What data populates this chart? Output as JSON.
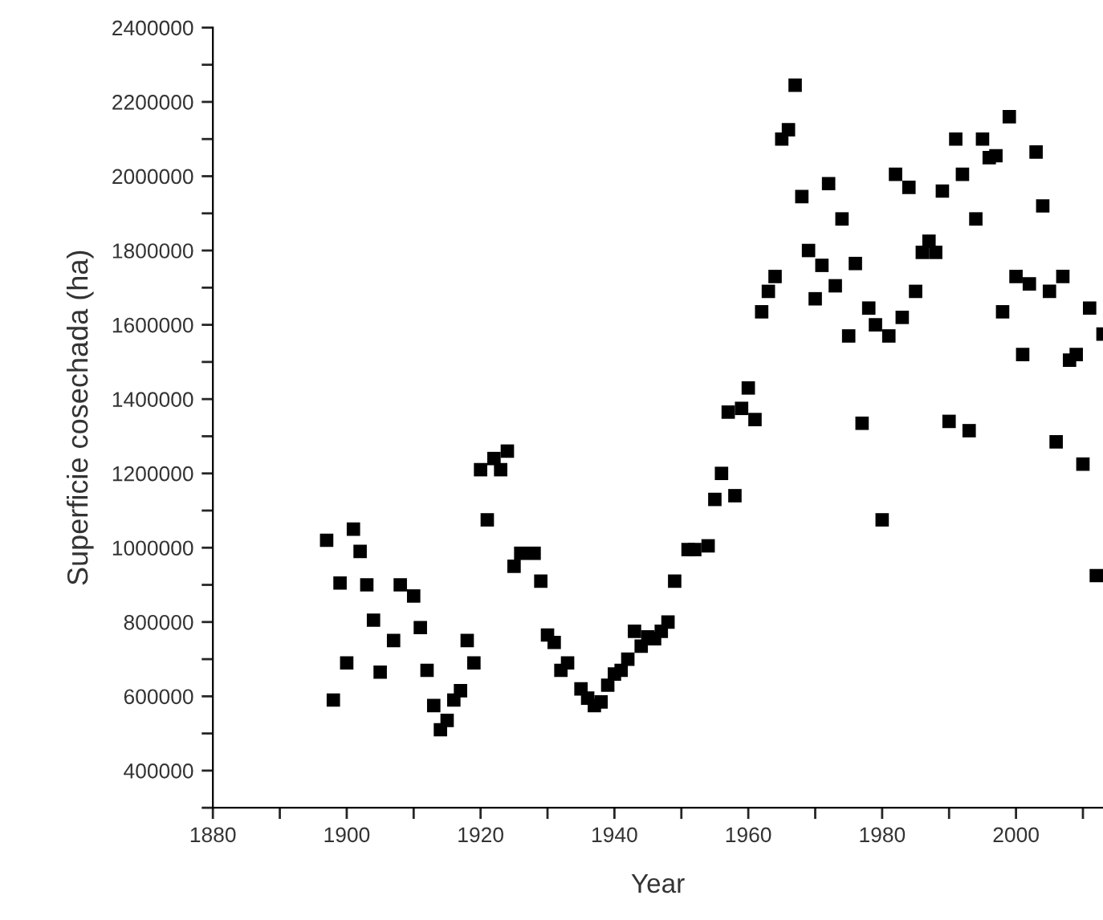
{
  "chart_data": {
    "type": "scatter",
    "xlabel": "Year",
    "ylabel": "Superficie cosechada (ha)",
    "marker": "square",
    "grid": false,
    "legend": false,
    "xlim": [
      1880,
      2013
    ],
    "ylim": [
      300000,
      2400000
    ],
    "xticks": [
      1880,
      {
        "value": 1890,
        "label": null
      },
      1900,
      {
        "value": 1910,
        "label": null
      },
      1920,
      {
        "value": 1930,
        "label": null
      },
      1940,
      {
        "value": 1950,
        "label": null
      },
      1960,
      {
        "value": 1970,
        "label": null
      },
      1980,
      {
        "value": 1990,
        "label": null
      },
      2000,
      {
        "value": 2010,
        "label": null
      }
    ],
    "yticks": [
      {
        "value": 300000,
        "label": null
      },
      400000,
      {
        "value": 500000,
        "label": null
      },
      600000,
      {
        "value": 700000,
        "label": null
      },
      800000,
      {
        "value": 900000,
        "label": null
      },
      1000000,
      {
        "value": 1100000,
        "label": null
      },
      1200000,
      {
        "value": 1300000,
        "label": null
      },
      1400000,
      {
        "value": 1500000,
        "label": null
      },
      1600000,
      {
        "value": 1700000,
        "label": null
      },
      1800000,
      {
        "value": 1900000,
        "label": null
      },
      2000000,
      {
        "value": 2100000,
        "label": null
      },
      2200000,
      {
        "value": 2300000,
        "label": null
      },
      2400000
    ],
    "series": [
      {
        "color": "#000000",
        "x": [
          1897,
          1898,
          1899,
          1900,
          1901,
          1902,
          1903,
          1904,
          1905,
          1907,
          1908,
          1910,
          1911,
          1912,
          1913,
          1914,
          1915,
          1916,
          1917,
          1918,
          1919,
          1920,
          1921,
          1922,
          1923,
          1924,
          1925,
          1926,
          1928,
          1929,
          1930,
          1931,
          1932,
          1933,
          1935,
          1936,
          1937,
          1938,
          1939,
          1940,
          1941,
          1942,
          1943,
          1944,
          1945,
          1946,
          1947,
          1948,
          1949,
          1951,
          1952,
          1954,
          1955,
          1956,
          1957,
          1958,
          1959,
          1960,
          1961,
          1962,
          1963,
          1964,
          1965,
          1966,
          1967,
          1968,
          1969,
          1970,
          1971,
          1972,
          1973,
          1974,
          1975,
          1976,
          1977,
          1978,
          1979,
          1980,
          1981,
          1982,
          1983,
          1984,
          1985,
          1986,
          1987,
          1988,
          1989,
          1990,
          1991,
          1992,
          1993,
          1994,
          1995,
          1996,
          1997,
          1998,
          1999,
          2000,
          2001,
          2002,
          2003,
          2004,
          2005,
          2006,
          2007,
          2008,
          2009,
          2010,
          2011,
          2012,
          2013
        ],
        "values": [
          1020000,
          590000,
          905000,
          690000,
          1050000,
          990000,
          900000,
          805000,
          665000,
          750000,
          900000,
          870000,
          785000,
          670000,
          575000,
          510000,
          535000,
          590000,
          615000,
          750000,
          690000,
          1210000,
          1075000,
          1240000,
          1210000,
          1260000,
          950000,
          985000,
          985000,
          910000,
          765000,
          745000,
          670000,
          690000,
          620000,
          595000,
          575000,
          585000,
          630000,
          660000,
          670000,
          700000,
          775000,
          735000,
          760000,
          755000,
          775000,
          800000,
          910000,
          995000,
          995000,
          1005000,
          1130000,
          1200000,
          1365000,
          1140000,
          1375000,
          1430000,
          1345000,
          1635000,
          1690000,
          1730000,
          2100000,
          2125000,
          2245000,
          1945000,
          1800000,
          1670000,
          1760000,
          1980000,
          1705000,
          1885000,
          1570000,
          1765000,
          1335000,
          1645000,
          1600000,
          1075000,
          1570000,
          2005000,
          1620000,
          1970000,
          1690000,
          1795000,
          1825000,
          1795000,
          1960000,
          1340000,
          2100000,
          2005000,
          1315000,
          1885000,
          2100000,
          2050000,
          2055000,
          1635000,
          2160000,
          1730000,
          1520000,
          1710000,
          2065000,
          1920000,
          1690000,
          1285000,
          1730000,
          1505000,
          1520000,
          1225000,
          1645000,
          925000,
          1575000
        ]
      }
    ]
  }
}
